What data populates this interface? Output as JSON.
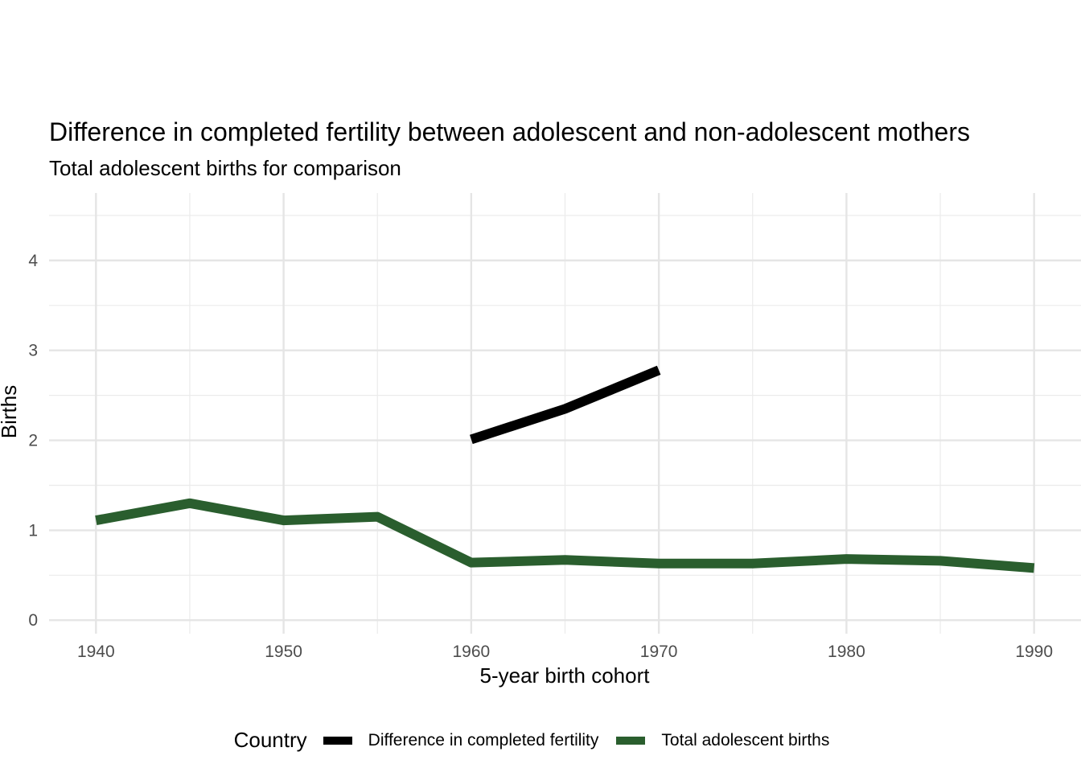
{
  "chart_data": {
    "type": "line",
    "title": "Difference in completed fertility between adolescent and non-adolescent mothers",
    "subtitle": "Total adolescent births for comparison",
    "xlabel": "5-year birth cohort",
    "ylabel": "Births",
    "xlim": [
      1937.5,
      1992.5
    ],
    "ylim": [
      -0.15,
      4.75
    ],
    "x_ticks": [
      1940,
      1950,
      1960,
      1970,
      1980,
      1990
    ],
    "y_ticks": [
      0,
      1,
      2,
      3,
      4
    ],
    "grid": true,
    "legend": {
      "title": "Country",
      "position": "bottom"
    },
    "series": [
      {
        "name": "Difference in completed fertility",
        "color": "#000000",
        "x": [
          1960,
          1965,
          1970
        ],
        "values": [
          2.01,
          2.35,
          2.78
        ]
      },
      {
        "name": "Total adolescent births",
        "color": "#2a5e2e",
        "x": [
          1940,
          1945,
          1950,
          1955,
          1960,
          1965,
          1970,
          1975,
          1980,
          1985,
          1990
        ],
        "values": [
          1.11,
          1.3,
          1.11,
          1.15,
          0.64,
          0.67,
          0.63,
          0.63,
          0.68,
          0.66,
          0.58
        ]
      }
    ]
  }
}
